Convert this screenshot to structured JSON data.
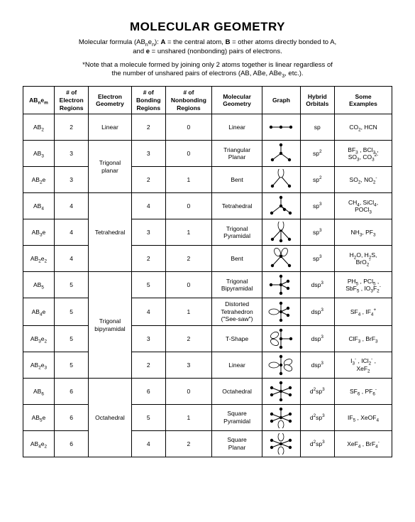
{
  "title": "MOLECULAR GEOMETRY",
  "subtitle_html": "Molecular formula (AB<sub>n</sub>e<sub>n</sub>): <b>A</b> = the central atom, <b>B</b> = other atoms directly bonded to A,<br>and <b>e</b> = unshared (nonbonding) pairs of electrons.",
  "note_html": "*Note that a molecule formed by joining only 2 atoms together is linear regardless of<br>the number of unshared pairs of electrons (AB, ABe, ABe<sub>3</sub>, etc.).",
  "headers": {
    "formula": "AB<sub>n</sub>e<sub>m</sub>",
    "electron_regions": "# of<br>Electron<br>Regions",
    "electron_geometry": "Electron<br>Geometry",
    "bonding_regions": "# of<br>Bonding<br>Regions",
    "nonbonding_regions": "# of<br>Nonbonding<br>Regions",
    "molecular_geometry": "Molecular<br>Geometry",
    "graph": "Graph",
    "hybrid_orbitals": "Hybrid<br>Orbitals",
    "examples": "Some<br>Examples"
  },
  "groups": [
    {
      "electron_geometry": "Linear",
      "rows": [
        {
          "formula": "AB<sub>2</sub>",
          "er": "2",
          "br": "2",
          "nr": "0",
          "mg": "Linear",
          "graph": "linear",
          "ho": "sp",
          "ex": "CO<sub>2</sub>, HCN"
        }
      ]
    },
    {
      "electron_geometry": "Trigonal<br>planar",
      "rows": [
        {
          "formula": "AB<sub>3</sub>",
          "er": "3",
          "br": "3",
          "nr": "0",
          "mg": "Triangular<br>Planar",
          "graph": "trigonal",
          "ho": "sp<sup>2</sup>",
          "ex": "BF<sub>3</sub> , BCl<sub>3</sub> ,<br>SO<sub>3</sub>, CO<sub>3</sub><sup>2-</sup>"
        },
        {
          "formula": "AB<sub>2</sub>e",
          "er": "3",
          "br": "2",
          "nr": "1",
          "mg": "Bent",
          "graph": "bent",
          "ho": "sp<sup>2</sup>",
          "ex": "SO<sub>2</sub>, NO<sub>2</sub><sup>-</sup>"
        }
      ]
    },
    {
      "electron_geometry": "Tetrahedral",
      "rows": [
        {
          "formula": "AB<sub>4</sub>",
          "er": "4",
          "br": "4",
          "nr": "0",
          "mg": "Tetrahedral",
          "graph": "tetra",
          "ho": "sp<sup>3</sup>",
          "ex": "CH<sub>4</sub>, SiCl<sub>4</sub>,<br>POCl<sub>3</sub>"
        },
        {
          "formula": "AB<sub>3</sub>e",
          "er": "4",
          "br": "3",
          "nr": "1",
          "mg": "Trigonal<br>Pyramidal",
          "graph": "trig-pyr",
          "ho": "sp<sup>3</sup>",
          "ex": "NH<sub>3</sub>, PF<sub>3</sub>"
        },
        {
          "formula": "AB<sub>2</sub>e<sub>2</sub>",
          "er": "4",
          "br": "2",
          "nr": "2",
          "mg": "Bent",
          "graph": "bent2",
          "ho": "sp<sup>3</sup>",
          "ex": "H<sub>2</sub>O, H<sub>2</sub>S,<br>BrO<sub>2</sub><sup>-</sup>"
        }
      ]
    },
    {
      "electron_geometry": "Trigonal<br>bipyramidal",
      "rows": [
        {
          "formula": "AB<sub>5</sub>",
          "er": "5",
          "br": "5",
          "nr": "0",
          "mg": "Trigonal<br>Bipyramidal",
          "graph": "tbp",
          "ho": "dsp<sup>3</sup>",
          "ex": "PH<sub>5</sub> , PCl<sub>5</sub> ,<br>SbF<sub>5</sub> , IO<sub>3</sub>F<sub>2</sub><sup>-</sup>"
        },
        {
          "formula": "AB<sub>4</sub>e",
          "er": "5",
          "br": "4",
          "nr": "1",
          "mg": "Distorted<br>Tetrahedron<br>(\"See-saw\")",
          "graph": "seesaw",
          "ho": "dsp<sup>3</sup>",
          "ex": "SF<sub>4</sub> , IF<sub>4</sub><sup>+</sup>"
        },
        {
          "formula": "AB<sub>3</sub>e<sub>2</sub>",
          "er": "5",
          "br": "3",
          "nr": "2",
          "mg": "T-Shape",
          "graph": "tshape",
          "ho": "dsp<sup>3</sup>",
          "ex": "ClF<sub>3</sub> , BrF<sub>3</sub>"
        },
        {
          "formula": "AB<sub>2</sub>e<sub>3</sub>",
          "er": "5",
          "br": "2",
          "nr": "3",
          "mg": "Linear",
          "graph": "linear-lp",
          "ho": "dsp<sup>3</sup>",
          "ex": "I<sub>3</sub><sup>-</sup> , ICl<sub>2</sub><sup>-</sup> ,<br>XeF<sub>2</sub>"
        }
      ]
    },
    {
      "electron_geometry": "Octahedral",
      "rows": [
        {
          "formula": "AB<sub>6</sub>",
          "er": "6",
          "br": "6",
          "nr": "0",
          "mg": "Octahedral",
          "graph": "octa",
          "ho": "d<sup>2</sup>sp<sup>3</sup>",
          "ex": "SF<sub>6</sub> , PF<sub>6</sub><sup>-</sup>"
        },
        {
          "formula": "AB<sub>5</sub>e",
          "er": "6",
          "br": "5",
          "nr": "1",
          "mg": "Square<br>Pyramidal",
          "graph": "sq-pyr",
          "ho": "d<sup>2</sup>sp<sup>3</sup>",
          "ex": "IF<sub>5</sub> , XeOF<sub>4</sub>"
        },
        {
          "formula": "AB<sub>4</sub>e<sub>2</sub>",
          "er": "6",
          "br": "4",
          "nr": "2",
          "mg": "Square<br>Planar",
          "graph": "sq-planar",
          "ho": "d<sup>2</sup>sp<sup>3</sup>",
          "ex": "XeF<sub>4</sub> , BrF<sub>4</sub><sup>-</sup>"
        }
      ]
    }
  ],
  "style": {
    "stroke": "#000000",
    "stroke_width": 1,
    "fill_bond": "#000000",
    "fill_lobe": "#ffffff"
  }
}
